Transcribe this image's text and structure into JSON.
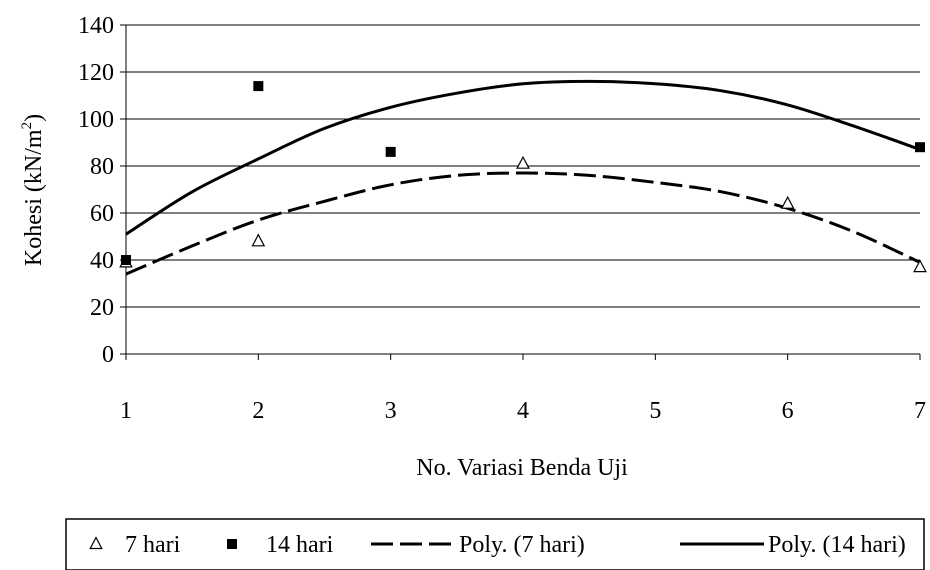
{
  "chart_data": {
    "type": "scatter",
    "title": "",
    "xlabel": "No. Variasi Benda Uji",
    "ylabel": {
      "prefix": "Kohesi (kN/m",
      "superscript": "2",
      "suffix": ")"
    },
    "xlim": [
      1,
      7
    ],
    "ylim": [
      0,
      140
    ],
    "x_ticks": [
      "1",
      "2",
      "3",
      "4",
      "5",
      "6",
      "7"
    ],
    "y_ticks": [
      "0",
      "20",
      "40",
      "60",
      "80",
      "100",
      "120",
      "140"
    ],
    "grid": "horizontal",
    "legend_placement": "bottom",
    "series": [
      {
        "name": "7 hari",
        "marker": "open-triangle",
        "x": [
          1,
          2,
          4,
          6,
          7
        ],
        "y": [
          39,
          48,
          81,
          64,
          37
        ]
      },
      {
        "name": "14 hari",
        "marker": "filled-square",
        "x": [
          1,
          2,
          3,
          7
        ],
        "y": [
          40,
          114,
          86,
          88
        ]
      },
      {
        "name": "Poly. (7 hari)",
        "line_style": "dashed",
        "x": [
          1,
          1.5,
          2,
          2.5,
          3,
          3.5,
          4,
          4.5,
          5,
          5.5,
          6,
          6.5,
          7
        ],
        "y": [
          34,
          46,
          57,
          65,
          72,
          76,
          77,
          76,
          73,
          69,
          62,
          52,
          39
        ]
      },
      {
        "name": "Poly. (14 hari)",
        "line_style": "solid",
        "x": [
          1,
          1.5,
          2,
          2.5,
          3,
          3.5,
          4,
          4.5,
          5,
          5.5,
          6,
          6.5,
          7
        ],
        "y": [
          51,
          69,
          83,
          96,
          105,
          111,
          115,
          116,
          115,
          112,
          106,
          97,
          87
        ]
      }
    ]
  }
}
